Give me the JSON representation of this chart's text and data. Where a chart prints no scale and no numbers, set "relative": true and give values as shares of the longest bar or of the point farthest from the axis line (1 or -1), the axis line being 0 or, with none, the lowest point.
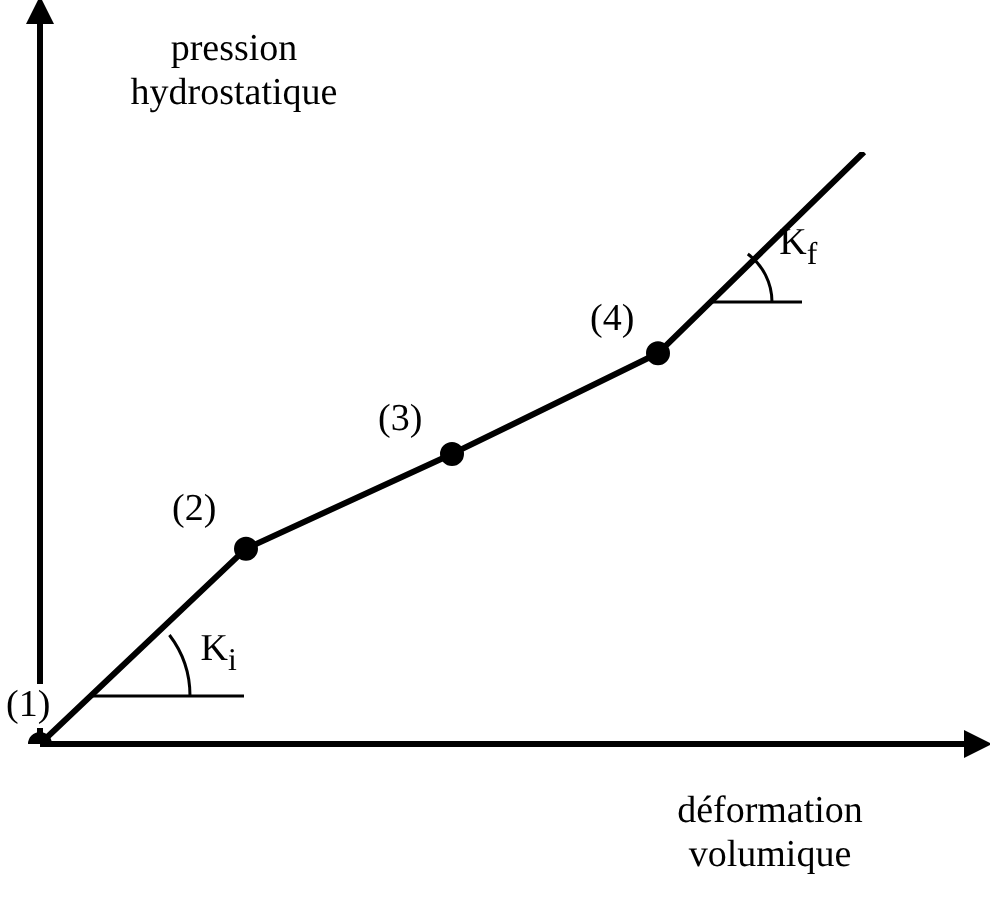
{
  "chart_data": {
    "type": "line",
    "relative": true,
    "xlabel": "déformation volumique",
    "ylabel": "pression hydrostatique",
    "color": "#000000",
    "marker": "circle",
    "line_style": "solid",
    "categories": [
      null,
      null,
      null,
      null,
      null
    ],
    "values": [
      0,
      0.33,
      0.49,
      0.66,
      1
    ],
    "annotations": [
      "(1)",
      "(2)",
      "(3)",
      "(4)",
      "K$_{i}$",
      "K$_{f}$"
    ]
  }
}
